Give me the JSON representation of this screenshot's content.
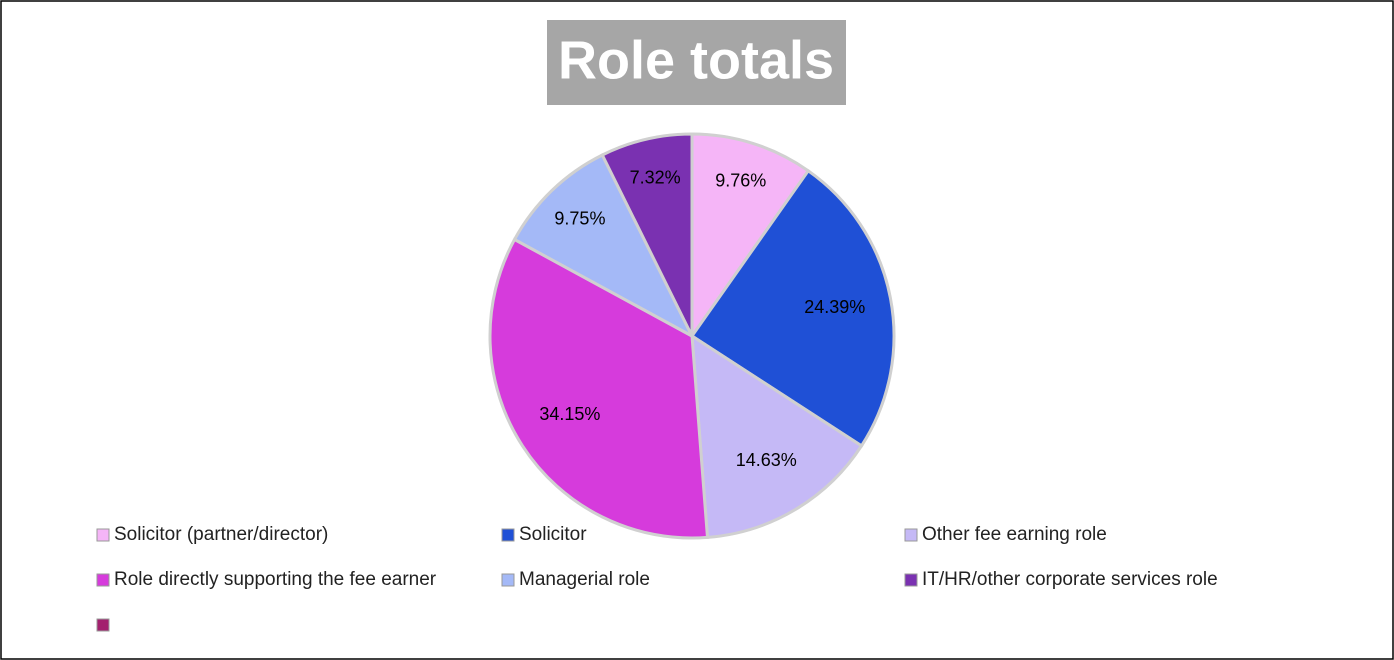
{
  "chart_data": {
    "type": "pie",
    "title": "Role totals",
    "categories": [
      "Solicitor (partner/director)",
      "Solicitor",
      "Other fee earning role",
      "Role directly supporting the fee earner",
      "Managerial role",
      "IT/HR/other corporate services role",
      null
    ],
    "values": [
      9.76,
      24.39,
      14.63,
      34.15,
      9.75,
      7.32,
      0
    ],
    "value_labels": [
      "9.76%",
      "24.39%",
      "14.63%",
      "34.15%",
      "9.75%",
      "7.32%",
      null
    ],
    "colors": [
      "#f5b5f7",
      "#1f50d6",
      "#c5b9f6",
      "#d63bdc",
      "#a4b9f7",
      "#7a31b1",
      "#a3206e"
    ],
    "legend": "bottom"
  }
}
